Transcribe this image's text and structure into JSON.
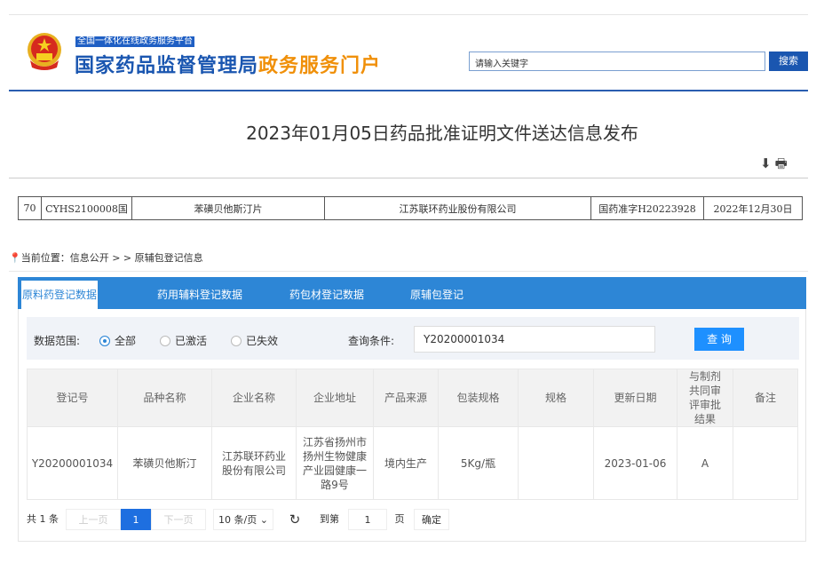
{
  "header": {
    "platform": "全国一体化在线政务服务平台",
    "brand_blue": "国家药品监督管理局",
    "brand_orange": "政务服务门户",
    "search_placeholder": "请输入关键字",
    "search_button": "搜索"
  },
  "colors": {
    "brand": "#1a56b0",
    "orange": "#f0900a",
    "tab_bar": "#2d86d6",
    "query_button": "#1e90ff"
  },
  "article": {
    "title": "2023年01月05日药品批准证明文件送达信息发布",
    "icons": [
      "download-icon",
      "print-icon"
    ],
    "row": [
      "70",
      "CYHS2100008国",
      "苯磺贝他斯汀片",
      "江苏联环药业股份有限公司",
      "国药准字H20223928",
      "2022年12月30日"
    ]
  },
  "breadcrumb": {
    "label": "当前位置：信息公开 > > 原辅包登记信息"
  },
  "tabs": [
    {
      "label": "原料药登记数据",
      "active": true
    },
    {
      "label": "药用辅料登记数据"
    },
    {
      "label": "药包材登记数据"
    },
    {
      "label": "原辅包登记"
    }
  ],
  "filter": {
    "scope_label": "数据范围:",
    "options": [
      {
        "label": "全部",
        "selected": true
      },
      {
        "label": "已激活"
      },
      {
        "label": "已失效"
      }
    ],
    "query_label": "查询条件:",
    "query_value": "Y20200001034",
    "query_button": "查 询"
  },
  "results": {
    "headers": [
      "登记号",
      "品种名称",
      "企业名称",
      "企业地址",
      "产品来源",
      "包装规格",
      "规格",
      "更新日期",
      "与制剂共同审评审批结果",
      "备注"
    ],
    "rows": [
      [
        "Y20200001034",
        "苯磺贝他斯汀",
        "江苏联环药业股份有限公司",
        "江苏省扬州市扬州生物健康产业园健康一路9号",
        "境内生产",
        "5Kg/瓶",
        "",
        "2023-01-06",
        "A",
        ""
      ]
    ]
  },
  "pager": {
    "total": "共 1 条",
    "prev": "上一页",
    "page": "1",
    "next": "下一页",
    "page_size": "10 条/页",
    "goto_label": "到第",
    "goto_value": "1",
    "page_unit": "页",
    "confirm": "确定"
  }
}
